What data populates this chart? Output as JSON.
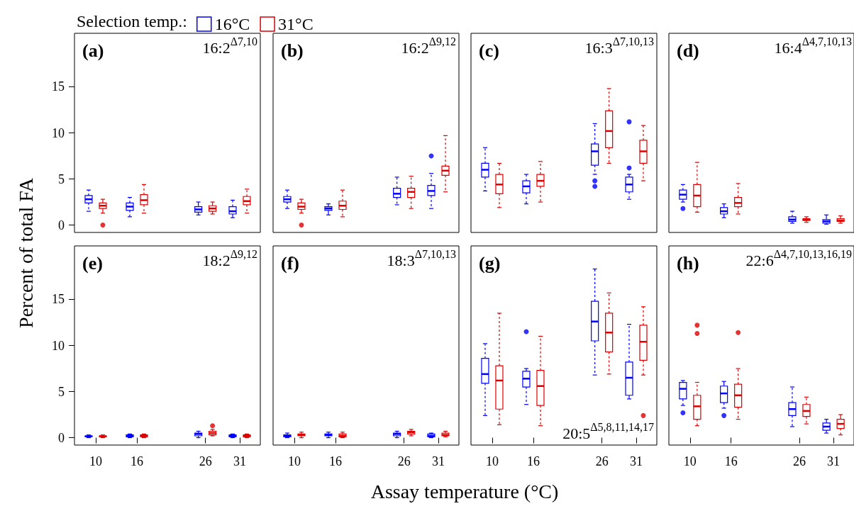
{
  "chart_data": [
    {
      "type": "box",
      "title": "(a)",
      "subtitle": "16:2$^{Δ7,10}$",
      "ylabel": "Percent of total FA",
      "legend": "top",
      "legend_title": "Selection temp.:",
      "x": [
        10,
        16,
        26,
        31
      ],
      "xlim": [
        6.9,
        34
      ],
      "xticks": [
        10,
        16,
        26,
        31
      ],
      "ylim": [
        -0.8,
        20.8
      ],
      "yticks": [
        0,
        5,
        10,
        15
      ],
      "tick_labels": "y",
      "series": [
        {
          "name": "16°C",
          "color": "#0000ff",
          "boxes": [
            {
              "low": 1.5,
              "q1": 2.4,
              "median": 2.8,
              "q3": 3.2,
              "high": 3.8
            },
            {
              "low": 0.9,
              "q1": 1.6,
              "median": 2.0,
              "q3": 2.4,
              "high": 3.0
            },
            {
              "low": 1.1,
              "q1": 1.4,
              "median": 1.7,
              "q3": 2.0,
              "high": 2.5
            },
            {
              "low": 0.8,
              "q1": 1.2,
              "median": 1.5,
              "q3": 2.0,
              "high": 2.7
            }
          ]
        },
        {
          "name": "31°C",
          "color": "#dd0000",
          "boxes": [
            {
              "low": 1.3,
              "q1": 1.8,
              "median": 2.1,
              "q3": 2.4,
              "high": 2.8,
              "outliers": [
                0
              ]
            },
            {
              "low": 1.3,
              "q1": 2.2,
              "median": 2.7,
              "q3": 3.3,
              "high": 4.4
            },
            {
              "low": 1.2,
              "q1": 1.5,
              "median": 1.8,
              "q3": 2.1,
              "high": 2.5
            },
            {
              "low": 1.3,
              "q1": 2.2,
              "median": 2.6,
              "q3": 3.1,
              "high": 3.9
            }
          ]
        }
      ]
    },
    {
      "type": "box",
      "title": "(b)",
      "subtitle": "16:2$^{Δ9,12}$",
      "x": [
        10,
        16,
        26,
        31
      ],
      "xlim": [
        6.9,
        34
      ],
      "xticks": [
        10,
        16,
        26,
        31
      ],
      "ylim": [
        -0.8,
        20.8
      ],
      "yticks": [
        0,
        5,
        10,
        15
      ],
      "tick_labels": false,
      "series": [
        {
          "color": "#0000ff",
          "boxes": [
            {
              "low": 1.8,
              "q1": 2.5,
              "median": 2.8,
              "q3": 3.1,
              "high": 3.8
            },
            {
              "low": 1.1,
              "q1": 1.6,
              "median": 1.8,
              "q3": 2.0,
              "high": 2.3
            },
            {
              "low": 2.2,
              "q1": 3.0,
              "median": 3.4,
              "q3": 4.0,
              "high": 5.2
            },
            {
              "low": 1.8,
              "q1": 3.2,
              "median": 3.7,
              "q3": 4.3,
              "high": 5.6,
              "outliers": [
                7.5
              ]
            }
          ]
        },
        {
          "color": "#dd0000",
          "boxes": [
            {
              "low": 1.3,
              "q1": 1.7,
              "median": 2.0,
              "q3": 2.4,
              "high": 2.8,
              "outliers": [
                0
              ]
            },
            {
              "low": 0.9,
              "q1": 1.7,
              "median": 2.1,
              "q3": 2.6,
              "high": 3.8
            },
            {
              "low": 1.8,
              "q1": 3.0,
              "median": 3.6,
              "q3": 4.0,
              "high": 5.3
            },
            {
              "low": 3.6,
              "q1": 5.4,
              "median": 5.9,
              "q3": 6.4,
              "high": 9.7
            }
          ]
        }
      ]
    },
    {
      "type": "box",
      "title": "(c)",
      "subtitle": "16:3$^{Δ7,10,13}$",
      "x": [
        10,
        16,
        26,
        31
      ],
      "xlim": [
        6.9,
        34
      ],
      "xticks": [
        10,
        16,
        26,
        31
      ],
      "ylim": [
        -0.8,
        20.8
      ],
      "yticks": [
        0,
        5,
        10,
        15
      ],
      "tick_labels": false,
      "series": [
        {
          "color": "#0000ff",
          "boxes": [
            {
              "low": 3.7,
              "q1": 5.2,
              "median": 6.0,
              "q3": 6.7,
              "high": 8.4
            },
            {
              "low": 2.3,
              "q1": 3.5,
              "median": 4.2,
              "q3": 4.8,
              "high": 5.5
            },
            {
              "low": 5.5,
              "q1": 6.5,
              "median": 8.0,
              "q3": 8.8,
              "high": 11.0,
              "outliers": [
                4.8,
                4.2
              ]
            },
            {
              "low": 2.8,
              "q1": 3.6,
              "median": 4.4,
              "q3": 5.2,
              "high": 5.5,
              "outliers": [
                11.2,
                6.2
              ]
            }
          ]
        },
        {
          "color": "#dd0000",
          "boxes": [
            {
              "low": 1.9,
              "q1": 3.4,
              "median": 4.4,
              "q3": 5.5,
              "high": 6.7
            },
            {
              "low": 2.5,
              "q1": 4.2,
              "median": 4.8,
              "q3": 5.5,
              "high": 6.9
            },
            {
              "low": 6.7,
              "q1": 8.4,
              "median": 10.2,
              "q3": 12.4,
              "high": 14.8
            },
            {
              "low": 4.8,
              "q1": 6.7,
              "median": 8.0,
              "q3": 9.2,
              "high": 10.8
            }
          ]
        }
      ]
    },
    {
      "type": "box",
      "title": "(d)",
      "subtitle": "16:4$^{Δ4,7,10,13}$",
      "x": [
        10,
        16,
        26,
        31
      ],
      "xlim": [
        6.9,
        34
      ],
      "xticks": [
        10,
        16,
        26,
        31
      ],
      "ylim": [
        -0.8,
        20.8
      ],
      "yticks": [
        0,
        5,
        10,
        15
      ],
      "tick_labels": false,
      "series": [
        {
          "color": "#0000ff",
          "boxes": [
            {
              "low": 2.5,
              "q1": 2.8,
              "median": 3.3,
              "q3": 3.8,
              "high": 4.4,
              "outliers": [
                1.8
              ]
            },
            {
              "low": 0.8,
              "q1": 1.2,
              "median": 1.5,
              "q3": 1.9,
              "high": 2.3
            },
            {
              "low": 0.2,
              "q1": 0.4,
              "median": 0.6,
              "q3": 0.9,
              "high": 1.5
            },
            {
              "low": 0.1,
              "q1": 0.2,
              "median": 0.4,
              "q3": 0.6,
              "high": 1.1
            }
          ]
        },
        {
          "color": "#dd0000",
          "boxes": [
            {
              "low": 1.4,
              "q1": 2.0,
              "median": 3.2,
              "q3": 4.4,
              "high": 6.8
            },
            {
              "low": 1.2,
              "q1": 2.0,
              "median": 2.4,
              "q3": 3.0,
              "high": 4.5
            },
            {
              "low": 0.3,
              "q1": 0.5,
              "median": 0.6,
              "q3": 0.7,
              "high": 0.9
            },
            {
              "low": 0.2,
              "q1": 0.4,
              "median": 0.5,
              "q3": 0.7,
              "high": 1.0
            }
          ]
        }
      ]
    },
    {
      "type": "box",
      "title": "(e)",
      "subtitle": "18:2$^{Δ9,12}$",
      "xlabel": "Assay temperature (°C)",
      "x": [
        10,
        16,
        26,
        31
      ],
      "xlim": [
        6.9,
        34
      ],
      "xticks": [
        10,
        16,
        26,
        31
      ],
      "ylim": [
        -0.8,
        20.8
      ],
      "yticks": [
        0,
        5,
        10,
        15
      ],
      "series": [
        {
          "color": "#0000ff",
          "boxes": [
            {
              "low": 0,
              "q1": 0.1,
              "median": 0.15,
              "q3": 0.2,
              "high": 0.3
            },
            {
              "low": 0,
              "q1": 0.1,
              "median": 0.2,
              "q3": 0.3,
              "high": 0.4
            },
            {
              "low": 0,
              "q1": 0.2,
              "median": 0.4,
              "q3": 0.5,
              "high": 0.7
            },
            {
              "low": 0,
              "q1": 0.1,
              "median": 0.2,
              "q3": 0.3,
              "high": 0.4
            }
          ]
        },
        {
          "color": "#dd0000",
          "boxes": [
            {
              "low": 0,
              "q1": 0.1,
              "median": 0.15,
              "q3": 0.2,
              "high": 0.3
            },
            {
              "low": 0,
              "q1": 0.1,
              "median": 0.2,
              "q3": 0.3,
              "high": 0.4
            },
            {
              "low": 0.2,
              "q1": 0.3,
              "median": 0.5,
              "q3": 0.7,
              "high": 0.9,
              "outliers": [
                1.3
              ]
            },
            {
              "low": 0,
              "q1": 0.1,
              "median": 0.2,
              "q3": 0.3,
              "high": 0.4
            }
          ]
        }
      ]
    },
    {
      "type": "box",
      "title": "(f)",
      "subtitle": "18:3$^{Δ7,10,13}$",
      "x": [
        10,
        16,
        26,
        31
      ],
      "xlim": [
        6.9,
        34
      ],
      "xticks": [
        10,
        16,
        26,
        31
      ],
      "ylim": [
        -0.8,
        20.8
      ],
      "yticks": [
        0,
        5,
        10,
        15
      ],
      "tick_labels": "x",
      "series": [
        {
          "color": "#0000ff",
          "boxes": [
            {
              "low": 0,
              "q1": 0.1,
              "median": 0.2,
              "q3": 0.3,
              "high": 0.5
            },
            {
              "low": 0,
              "q1": 0.2,
              "median": 0.3,
              "q3": 0.4,
              "high": 0.6
            },
            {
              "low": 0,
              "q1": 0.2,
              "median": 0.4,
              "q3": 0.5,
              "high": 0.7
            },
            {
              "low": 0,
              "q1": 0.1,
              "median": 0.2,
              "q3": 0.4,
              "high": 0.5
            }
          ]
        },
        {
          "color": "#dd0000",
          "boxes": [
            {
              "low": 0,
              "q1": 0.2,
              "median": 0.3,
              "q3": 0.4,
              "high": 0.6
            },
            {
              "low": 0,
              "q1": 0.1,
              "median": 0.2,
              "q3": 0.4,
              "high": 0.6
            },
            {
              "low": 0.2,
              "q1": 0.4,
              "median": 0.6,
              "q3": 0.7,
              "high": 0.9
            },
            {
              "low": 0.1,
              "q1": 0.2,
              "median": 0.3,
              "q3": 0.5,
              "high": 0.7
            }
          ]
        }
      ]
    },
    {
      "type": "box",
      "title": "(g)",
      "subtitle": "20:5$^{Δ5,8,11,14,17}$",
      "x": [
        10,
        16,
        26,
        31
      ],
      "xlim": [
        6.9,
        34
      ],
      "xticks": [
        10,
        16,
        26,
        31
      ],
      "ylim": [
        -0.8,
        20.8
      ],
      "yticks": [
        0,
        5,
        10,
        15
      ],
      "tick_labels": "x",
      "series": [
        {
          "color": "#0000ff",
          "boxes": [
            {
              "low": 2.4,
              "q1": 5.9,
              "median": 6.9,
              "q3": 8.6,
              "high": 10.2
            },
            {
              "low": 3.6,
              "q1": 5.5,
              "median": 6.4,
              "q3": 7.2,
              "high": 7.5,
              "outliers": [
                11.5
              ]
            },
            {
              "low": 6.8,
              "q1": 10.5,
              "median": 12.6,
              "q3": 14.8,
              "high": 18.3
            },
            {
              "low": 4.2,
              "q1": 4.6,
              "median": 6.5,
              "q3": 8.2,
              "high": 12.3
            }
          ]
        },
        {
          "color": "#dd0000",
          "boxes": [
            {
              "low": 1.4,
              "q1": 3.1,
              "median": 6.2,
              "q3": 7.8,
              "high": 13.5
            },
            {
              "low": 1.3,
              "q1": 3.5,
              "median": 5.6,
              "q3": 7.3,
              "high": 11.0
            },
            {
              "low": 6.9,
              "q1": 9.3,
              "median": 11.4,
              "q3": 13.5,
              "high": 15.7
            },
            {
              "low": 6.8,
              "q1": 8.4,
              "median": 10.4,
              "q3": 12.2,
              "high": 14.2,
              "outliers": [
                2.4
              ]
            }
          ]
        }
      ]
    },
    {
      "type": "box",
      "title": "(h)",
      "subtitle": "22:6$^{Δ4,7,10,13,16,19}$",
      "x": [
        10,
        16,
        26,
        31
      ],
      "xlim": [
        6.9,
        34
      ],
      "xticks": [
        10,
        16,
        26,
        31
      ],
      "ylim": [
        -0.8,
        20.8
      ],
      "yticks": [
        0,
        5,
        10,
        15
      ],
      "tick_labels": "x",
      "series": [
        {
          "color": "#0000ff",
          "boxes": [
            {
              "low": 3.5,
              "q1": 4.2,
              "median": 5.3,
              "q3": 6.0,
              "high": 6.2,
              "outliers": [
                2.7
              ]
            },
            {
              "low": 3.2,
              "q1": 3.8,
              "median": 4.8,
              "q3": 5.6,
              "high": 6.1,
              "outliers": [
                2.4
              ]
            },
            {
              "low": 1.2,
              "q1": 2.4,
              "median": 3.1,
              "q3": 3.8,
              "high": 5.5
            },
            {
              "low": 0.5,
              "q1": 0.8,
              "median": 1.2,
              "q3": 1.6,
              "high": 2.0
            }
          ]
        },
        {
          "color": "#dd0000",
          "boxes": [
            {
              "low": 1.3,
              "q1": 2.0,
              "median": 3.4,
              "q3": 4.6,
              "high": 6.0,
              "outliers": [
                12.2,
                11.3
              ]
            },
            {
              "low": 2.0,
              "q1": 3.3,
              "median": 4.6,
              "q3": 5.8,
              "high": 7.5,
              "outliers": [
                11.4
              ]
            },
            {
              "low": 1.5,
              "q1": 2.3,
              "median": 2.9,
              "q3": 3.6,
              "high": 4.4
            },
            {
              "low": 0.3,
              "q1": 1.0,
              "median": 1.5,
              "q3": 2.0,
              "high": 2.5
            }
          ]
        }
      ]
    }
  ]
}
